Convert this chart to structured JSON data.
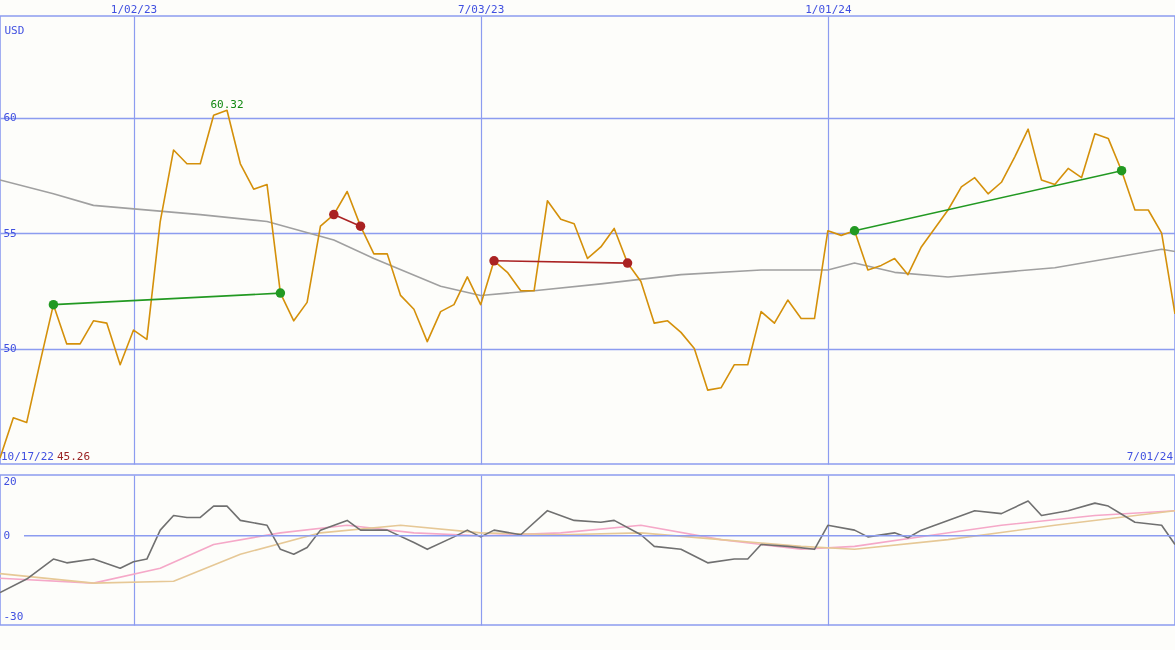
{
  "chart_data": [
    {
      "type": "line",
      "ylabel": "USD",
      "xlim": [
        "2022-10-24",
        "2024-07-01"
      ],
      "xticks": [
        {
          "value": "2023-01-02",
          "label": "1/02/23"
        },
        {
          "value": "2023-07-03",
          "label": "7/03/23"
        },
        {
          "value": "2024-01-01",
          "label": "1/01/24"
        }
      ],
      "ylim": [
        45,
        64.4
      ],
      "yticks": [
        50,
        55,
        60
      ],
      "grid": true,
      "annotations": [
        {
          "text": "60.32",
          "x": "2023-02-20",
          "y": 60.32
        },
        "10/17/22",
        "45.26",
        "7/01/24"
      ],
      "x": [
        "2022-10-24",
        "2022-10-31",
        "2022-11-07",
        "2022-11-14",
        "2022-11-21",
        "2022-11-28",
        "2022-12-05",
        "2022-12-12",
        "2022-12-19",
        "2022-12-26",
        "2023-01-02",
        "2023-01-09",
        "2023-01-16",
        "2023-01-23",
        "2023-01-30",
        "2023-02-06",
        "2023-02-13",
        "2023-02-20",
        "2023-02-27",
        "2023-03-06",
        "2023-03-13",
        "2023-03-20",
        "2023-03-27",
        "2023-04-03",
        "2023-04-10",
        "2023-04-17",
        "2023-04-24",
        "2023-05-01",
        "2023-05-08",
        "2023-05-15",
        "2023-05-22",
        "2023-05-29",
        "2023-06-05",
        "2023-06-12",
        "2023-06-19",
        "2023-06-26",
        "2023-07-03",
        "2023-07-10",
        "2023-07-17",
        "2023-07-24",
        "2023-07-31",
        "2023-08-07",
        "2023-08-14",
        "2023-08-21",
        "2023-08-28",
        "2023-09-04",
        "2023-09-11",
        "2023-09-18",
        "2023-09-25",
        "2023-10-02",
        "2023-10-09",
        "2023-10-16",
        "2023-10-23",
        "2023-10-30",
        "2023-11-06",
        "2023-11-13",
        "2023-11-20",
        "2023-11-27",
        "2023-12-04",
        "2023-12-11",
        "2023-12-18",
        "2023-12-25",
        "2024-01-01",
        "2024-01-08",
        "2024-01-15",
        "2024-01-22",
        "2024-01-29",
        "2024-02-05",
        "2024-02-12",
        "2024-02-19",
        "2024-02-26",
        "2024-03-04",
        "2024-03-11",
        "2024-03-18",
        "2024-03-25",
        "2024-04-01",
        "2024-04-08",
        "2024-04-15",
        "2024-04-22",
        "2024-04-29",
        "2024-05-06",
        "2024-05-13",
        "2024-05-20",
        "2024-05-27",
        "2024-06-03",
        "2024-06-10",
        "2024-06-17",
        "2024-06-24",
        "2024-07-01"
      ],
      "series": [
        {
          "color": "#a0a0a0",
          "x": [
            "2022-10-24",
            "2022-11-21",
            "2022-12-12",
            "2023-02-06",
            "2023-03-13",
            "2023-04-17",
            "2023-05-08",
            "2023-06-12",
            "2023-07-03",
            "2023-07-31",
            "2023-09-04",
            "2023-10-16",
            "2023-11-27",
            "2024-01-01",
            "2024-01-15",
            "2024-02-05",
            "2024-03-04",
            "2024-04-01",
            "2024-04-29",
            "2024-06-03",
            "2024-06-24",
            "2024-07-01"
          ],
          "values": [
            57.3,
            56.7,
            56.2,
            55.8,
            55.5,
            54.7,
            53.9,
            52.7,
            52.3,
            52.5,
            52.8,
            53.2,
            53.4,
            53.4,
            53.7,
            53.3,
            53.1,
            53.3,
            53.5,
            54.0,
            54.3,
            54.2
          ]
        },
        {
          "color": "#d4900a",
          "values": [
            45.26,
            47.0,
            46.8,
            49.4,
            51.9,
            50.2,
            50.2,
            51.2,
            51.1,
            49.3,
            50.8,
            50.4,
            55.5,
            58.6,
            58.0,
            58.0,
            60.1,
            60.32,
            58.0,
            56.9,
            57.1,
            52.4,
            51.2,
            52.0,
            55.3,
            55.8,
            56.8,
            55.3,
            54.1,
            54.1,
            52.3,
            51.7,
            50.3,
            51.6,
            51.9,
            53.1,
            51.9,
            53.8,
            53.3,
            52.5,
            52.5,
            56.4,
            55.6,
            55.4,
            53.9,
            54.4,
            55.2,
            53.7,
            52.9,
            51.1,
            51.2,
            50.7,
            50.0,
            48.2,
            48.3,
            49.3,
            49.3,
            51.6,
            51.1,
            52.1,
            51.3,
            51.3,
            55.1,
            54.9,
            55.1,
            53.4,
            53.6,
            53.9,
            53.2,
            54.4,
            55.2,
            56.0,
            57.0,
            57.4,
            56.7,
            57.2,
            58.3,
            59.5,
            57.3,
            57.1,
            57.8,
            57.4,
            59.3,
            59.1,
            57.7,
            56.0,
            56.0,
            55.0,
            51.5
          ]
        },
        {
          "color": "#229922",
          "marker": "circle",
          "x": [
            "2022-11-21",
            "2023-03-20"
          ],
          "values": [
            51.9,
            52.4
          ]
        },
        {
          "color": "#aa2222",
          "marker": "circle",
          "x": [
            "2023-04-17",
            "2023-05-01"
          ],
          "values": [
            55.8,
            55.3
          ]
        },
        {
          "color": "#aa2222",
          "marker": "circle",
          "x": [
            "2023-07-10",
            "2023-09-18"
          ],
          "values": [
            53.8,
            53.7
          ]
        },
        {
          "color": "#229922",
          "marker": "circle",
          "x": [
            "2024-01-15",
            "2024-06-03"
          ],
          "values": [
            55.1,
            57.7
          ]
        }
      ]
    },
    {
      "type": "line",
      "xlim": [
        "2022-10-24",
        "2024-07-01"
      ],
      "xticks": [
        {
          "value": "2023-01-02",
          "label": null
        },
        {
          "value": "2023-07-03",
          "label": null
        },
        {
          "value": "2024-01-01",
          "label": null
        }
      ],
      "ylim": [
        -33,
        22.5
      ],
      "yticks": [
        20,
        0,
        -30
      ],
      "grid": "x",
      "tick_labels": "y",
      "ref_lines": [
        {
          "axis": "y",
          "value": 0
        }
      ],
      "series": [
        {
          "color": "#f5a8c8",
          "x": [
            "2022-10-24",
            "2022-12-12",
            "2023-01-16",
            "2023-02-13",
            "2023-03-20",
            "2023-04-24",
            "2023-05-29",
            "2023-07-03",
            "2023-08-14",
            "2023-09-25",
            "2023-11-06",
            "2023-12-18",
            "2024-01-15",
            "2024-02-26",
            "2024-04-01",
            "2024-05-20",
            "2024-07-01"
          ],
          "values": [
            -15.7,
            -17.5,
            -12,
            -3.2,
            1.1,
            3.9,
            1.1,
            0,
            1.1,
            3.9,
            -1.4,
            -5,
            -3.9,
            0.4,
            3.9,
            7.5,
            9.3
          ]
        },
        {
          "color": "#e6c896",
          "x": [
            "2022-10-24",
            "2022-12-12",
            "2023-01-23",
            "2023-02-27",
            "2023-04-10",
            "2023-05-22",
            "2023-07-03",
            "2023-08-14",
            "2023-09-25",
            "2023-11-06",
            "2023-12-18",
            "2024-01-15",
            "2024-03-04",
            "2024-04-29",
            "2024-07-01"
          ],
          "values": [
            -14,
            -17.5,
            -16.8,
            -6.8,
            1.1,
            3.9,
            1.1,
            0.4,
            1.1,
            -1.4,
            -3.9,
            -5,
            -1.4,
            3.9,
            9.3
          ]
        },
        {
          "color": "#707070",
          "x": [
            "2022-10-24",
            "2022-11-07",
            "2022-11-21",
            "2022-11-28",
            "2022-12-12",
            "2022-12-26",
            "2023-01-02",
            "2023-01-09",
            "2023-01-16",
            "2023-01-23",
            "2023-01-30",
            "2023-02-06",
            "2023-02-13",
            "2023-02-20",
            "2023-02-27",
            "2023-03-13",
            "2023-03-20",
            "2023-03-27",
            "2023-04-03",
            "2023-04-10",
            "2023-04-24",
            "2023-05-01",
            "2023-05-15",
            "2023-05-29",
            "2023-06-05",
            "2023-06-19",
            "2023-06-26",
            "2023-07-03",
            "2023-07-10",
            "2023-07-24",
            "2023-08-07",
            "2023-08-21",
            "2023-09-04",
            "2023-09-11",
            "2023-09-25",
            "2023-10-02",
            "2023-10-16",
            "2023-10-30",
            "2023-11-13",
            "2023-11-20",
            "2023-11-27",
            "2023-12-11",
            "2023-12-25",
            "2024-01-01",
            "2024-01-15",
            "2024-01-22",
            "2024-02-05",
            "2024-02-12",
            "2024-02-19",
            "2024-03-04",
            "2024-03-18",
            "2024-04-01",
            "2024-04-15",
            "2024-04-22",
            "2024-05-06",
            "2024-05-20",
            "2024-05-27",
            "2024-06-10",
            "2024-06-24",
            "2024-07-01"
          ],
          "values": [
            -21,
            -16,
            -8.6,
            -10,
            -8.6,
            -12,
            -9.6,
            -8.6,
            2.1,
            7.5,
            6.8,
            6.8,
            11,
            11,
            5.7,
            3.9,
            -5,
            -6.8,
            -4.3,
            2.1,
            5.7,
            2.1,
            2.1,
            -2.5,
            -5,
            -0.4,
            2.1,
            -0.4,
            2.1,
            0.4,
            9.3,
            5.7,
            5,
            5.7,
            0.4,
            -3.9,
            -5,
            -10,
            -8.6,
            -8.6,
            -3.2,
            -3.9,
            -5,
            3.9,
            2.1,
            -0.4,
            1.1,
            -0.7,
            2.1,
            5.7,
            9.3,
            8.2,
            12.9,
            7.5,
            9.3,
            12.1,
            11,
            5,
            3.9,
            -3.2
          ]
        }
      ]
    }
  ]
}
